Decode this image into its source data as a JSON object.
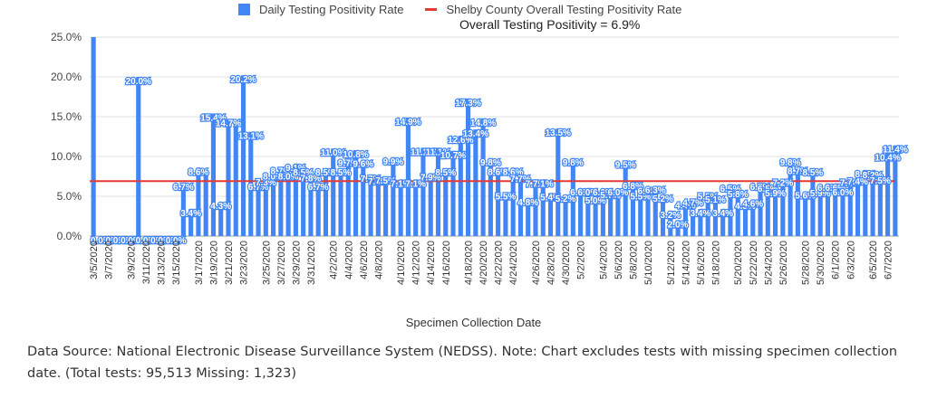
{
  "chart_data": {
    "type": "bar",
    "title": "",
    "annotation": "Overall Testing Positivity = 6.9%",
    "xlabel": "Specimen Collection Date",
    "ylabel": "",
    "ylim": [
      0,
      25
    ],
    "yticks": [
      "0.0%",
      "5.0%",
      "10.0%",
      "15.0%",
      "20.0%",
      "25.0%"
    ],
    "grid": true,
    "legend_position": "top",
    "legend": [
      {
        "label": "Daily Testing Positivity Rate",
        "kind": "bar",
        "color": "#4285f4"
      },
      {
        "label": "Shelby County Overall Testing Positivity Rate",
        "kind": "line",
        "color": "#e53935"
      }
    ],
    "reference_line": {
      "name": "Shelby County Overall Testing Positivity Rate",
      "value": 6.9
    },
    "x_tick_labels": [
      "3/5/2020",
      "3/7/2020",
      "3/9/2020",
      "3/11/2020",
      "3/13/2020",
      "3/15/2020",
      "3/17/2020",
      "3/19/2020",
      "3/21/2020",
      "3/23/2020",
      "3/25/2020",
      "3/27/2020",
      "3/29/2020",
      "3/31/2020",
      "4/2/2020",
      "4/4/2020",
      "4/6/2020",
      "4/8/2020",
      "4/10/2020",
      "4/12/2020",
      "4/14/2020",
      "4/16/2020",
      "4/18/2020",
      "4/20/2020",
      "4/22/2020",
      "4/24/2020",
      "4/26/2020",
      "4/28/2020",
      "4/30/2020",
      "5/2/2020",
      "5/4/2020",
      "5/6/2020",
      "5/8/2020",
      "5/10/2020",
      "5/12/2020",
      "5/14/2020",
      "5/16/2020",
      "5/18/2020",
      "5/20/2020",
      "5/22/2020",
      "5/24/2020",
      "5/26/2020",
      "5/28/2020",
      "5/30/2020",
      "6/1/2020",
      "6/3/2020",
      "6/5/2020",
      "6/7/2020"
    ],
    "series": [
      {
        "name": "Daily Testing Positivity Rate",
        "color": "#4285f4",
        "values": [
          25.0,
          0.0,
          0.0,
          0.0,
          0.0,
          0.0,
          20.0,
          0.0,
          0.0,
          0.0,
          0.0,
          0.0,
          6.7,
          3.4,
          8.6,
          8.0,
          15.4,
          4.3,
          14.7,
          14.3,
          20.2,
          13.1,
          6.7,
          7.3,
          8.0,
          8.7,
          8.0,
          9.1,
          8.5,
          7.8,
          6.7,
          8.5,
          11.0,
          8.5,
          9.7,
          10.8,
          9.6,
          7.7,
          7.4,
          7.5,
          9.9,
          7.1,
          14.9,
          7.1,
          11.1,
          7.9,
          11.1,
          8.5,
          10.7,
          12.6,
          17.3,
          13.4,
          14.8,
          9.8,
          8.6,
          5.5,
          8.6,
          7.7,
          4.8,
          7.1,
          7.1,
          5.4,
          13.5,
          5.2,
          9.8,
          6.0,
          6.0,
          5.0,
          6.0,
          5.7,
          6.0,
          9.5,
          6.8,
          5.5,
          6.2,
          6.3,
          5.2,
          3.2,
          2.0,
          4.4,
          4.7,
          3.4,
          5.5,
          5.1,
          3.4,
          6.5,
          5.8,
          4.3,
          4.6,
          6.7,
          6.5,
          5.9,
          7.2,
          9.8,
          8.7,
          5.6,
          8.5,
          5.9,
          6.6,
          6.6,
          6.0,
          7.2,
          7.4,
          8.3,
          8.2,
          7.5,
          10.4,
          11.4
        ],
        "data_labels": [
          "",
          "0.0%",
          "0.0%",
          "0.0%",
          "0.0%",
          "0.0%",
          "20.0%",
          "0.0%",
          "0.0%",
          "0.0%",
          "0.0%",
          "0.0%",
          "6.7%",
          "3.4%",
          "8.6%",
          "",
          "15.4%",
          "4.3%",
          "14.7%",
          "",
          "20.2%",
          "13.1%",
          "6.7%",
          "7.3%",
          "8.0%",
          "8.7%",
          "8.0%",
          "9.1%",
          "8.5%",
          "7.8%",
          "6.7%",
          "8.5%",
          "11.0%",
          "8.5%",
          "9.7%",
          "10.8%",
          "9.6%",
          "7.7%",
          "7.4%",
          "7.5%",
          "9.9%",
          "7.1%",
          "14.9%",
          "7.1%",
          "11.1%",
          "7.9%",
          "11.1%",
          "8.5%",
          "10.7%",
          "12.6%",
          "17.3%",
          "13.4%",
          "14.8%",
          "9.8%",
          "8.6%",
          "5.5%",
          "8.6%",
          "7.7%",
          "4.8%",
          "7.1%",
          "7.1%",
          "5.4%",
          "13.5%",
          "5.2%",
          "9.8%",
          "6.0%",
          "6.0%",
          "5.0%",
          "6.0%",
          "5.7%",
          "6.0%",
          "9.5%",
          "6.8%",
          "5.5%",
          "6.2%",
          "6.3%",
          "5.2%",
          "3.2%",
          "2.0%",
          "4.4%",
          "4.7%",
          "3.4%",
          "5.5%",
          "5.1%",
          "3.4%",
          "6.5%",
          "5.8%",
          "4.3%",
          "4.6%",
          "6.7%",
          "6.5%",
          "5.9%",
          "7.2%",
          "9.8%",
          "8.7%",
          "5.6%",
          "8.5%",
          "5.9%",
          "6.6%",
          "6.6%",
          "6.0%",
          "7.2%",
          "7.4%",
          "8.3%",
          "8.2%",
          "7.5%",
          "10.4%",
          "11.4%"
        ]
      }
    ]
  },
  "footer": {
    "source_text": "Data Source: National Electronic Disease Surveillance System (NEDSS). Note: Chart excludes tests with missing specimen collection date. (Total tests: 95,513 Missing: 1,323)"
  }
}
